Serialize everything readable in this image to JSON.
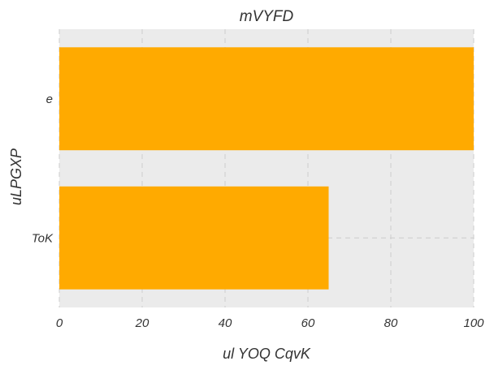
{
  "chart_data": {
    "type": "bar",
    "orientation": "horizontal",
    "title": "mVYFD",
    "xlabel": "ul  YOQ CqvK",
    "ylabel": "uLPGXP",
    "categories": [
      "e",
      "ToK"
    ],
    "values": [
      100,
      65
    ],
    "xlim": [
      0,
      100
    ],
    "xticks": [
      0,
      20,
      40,
      60,
      80,
      100
    ],
    "grid": true,
    "legend": "none",
    "colors": {
      "bar": "#FFAA00",
      "plot_background": "#EBEBEB",
      "grid": "#CCCCCC",
      "text": "#333333"
    }
  }
}
